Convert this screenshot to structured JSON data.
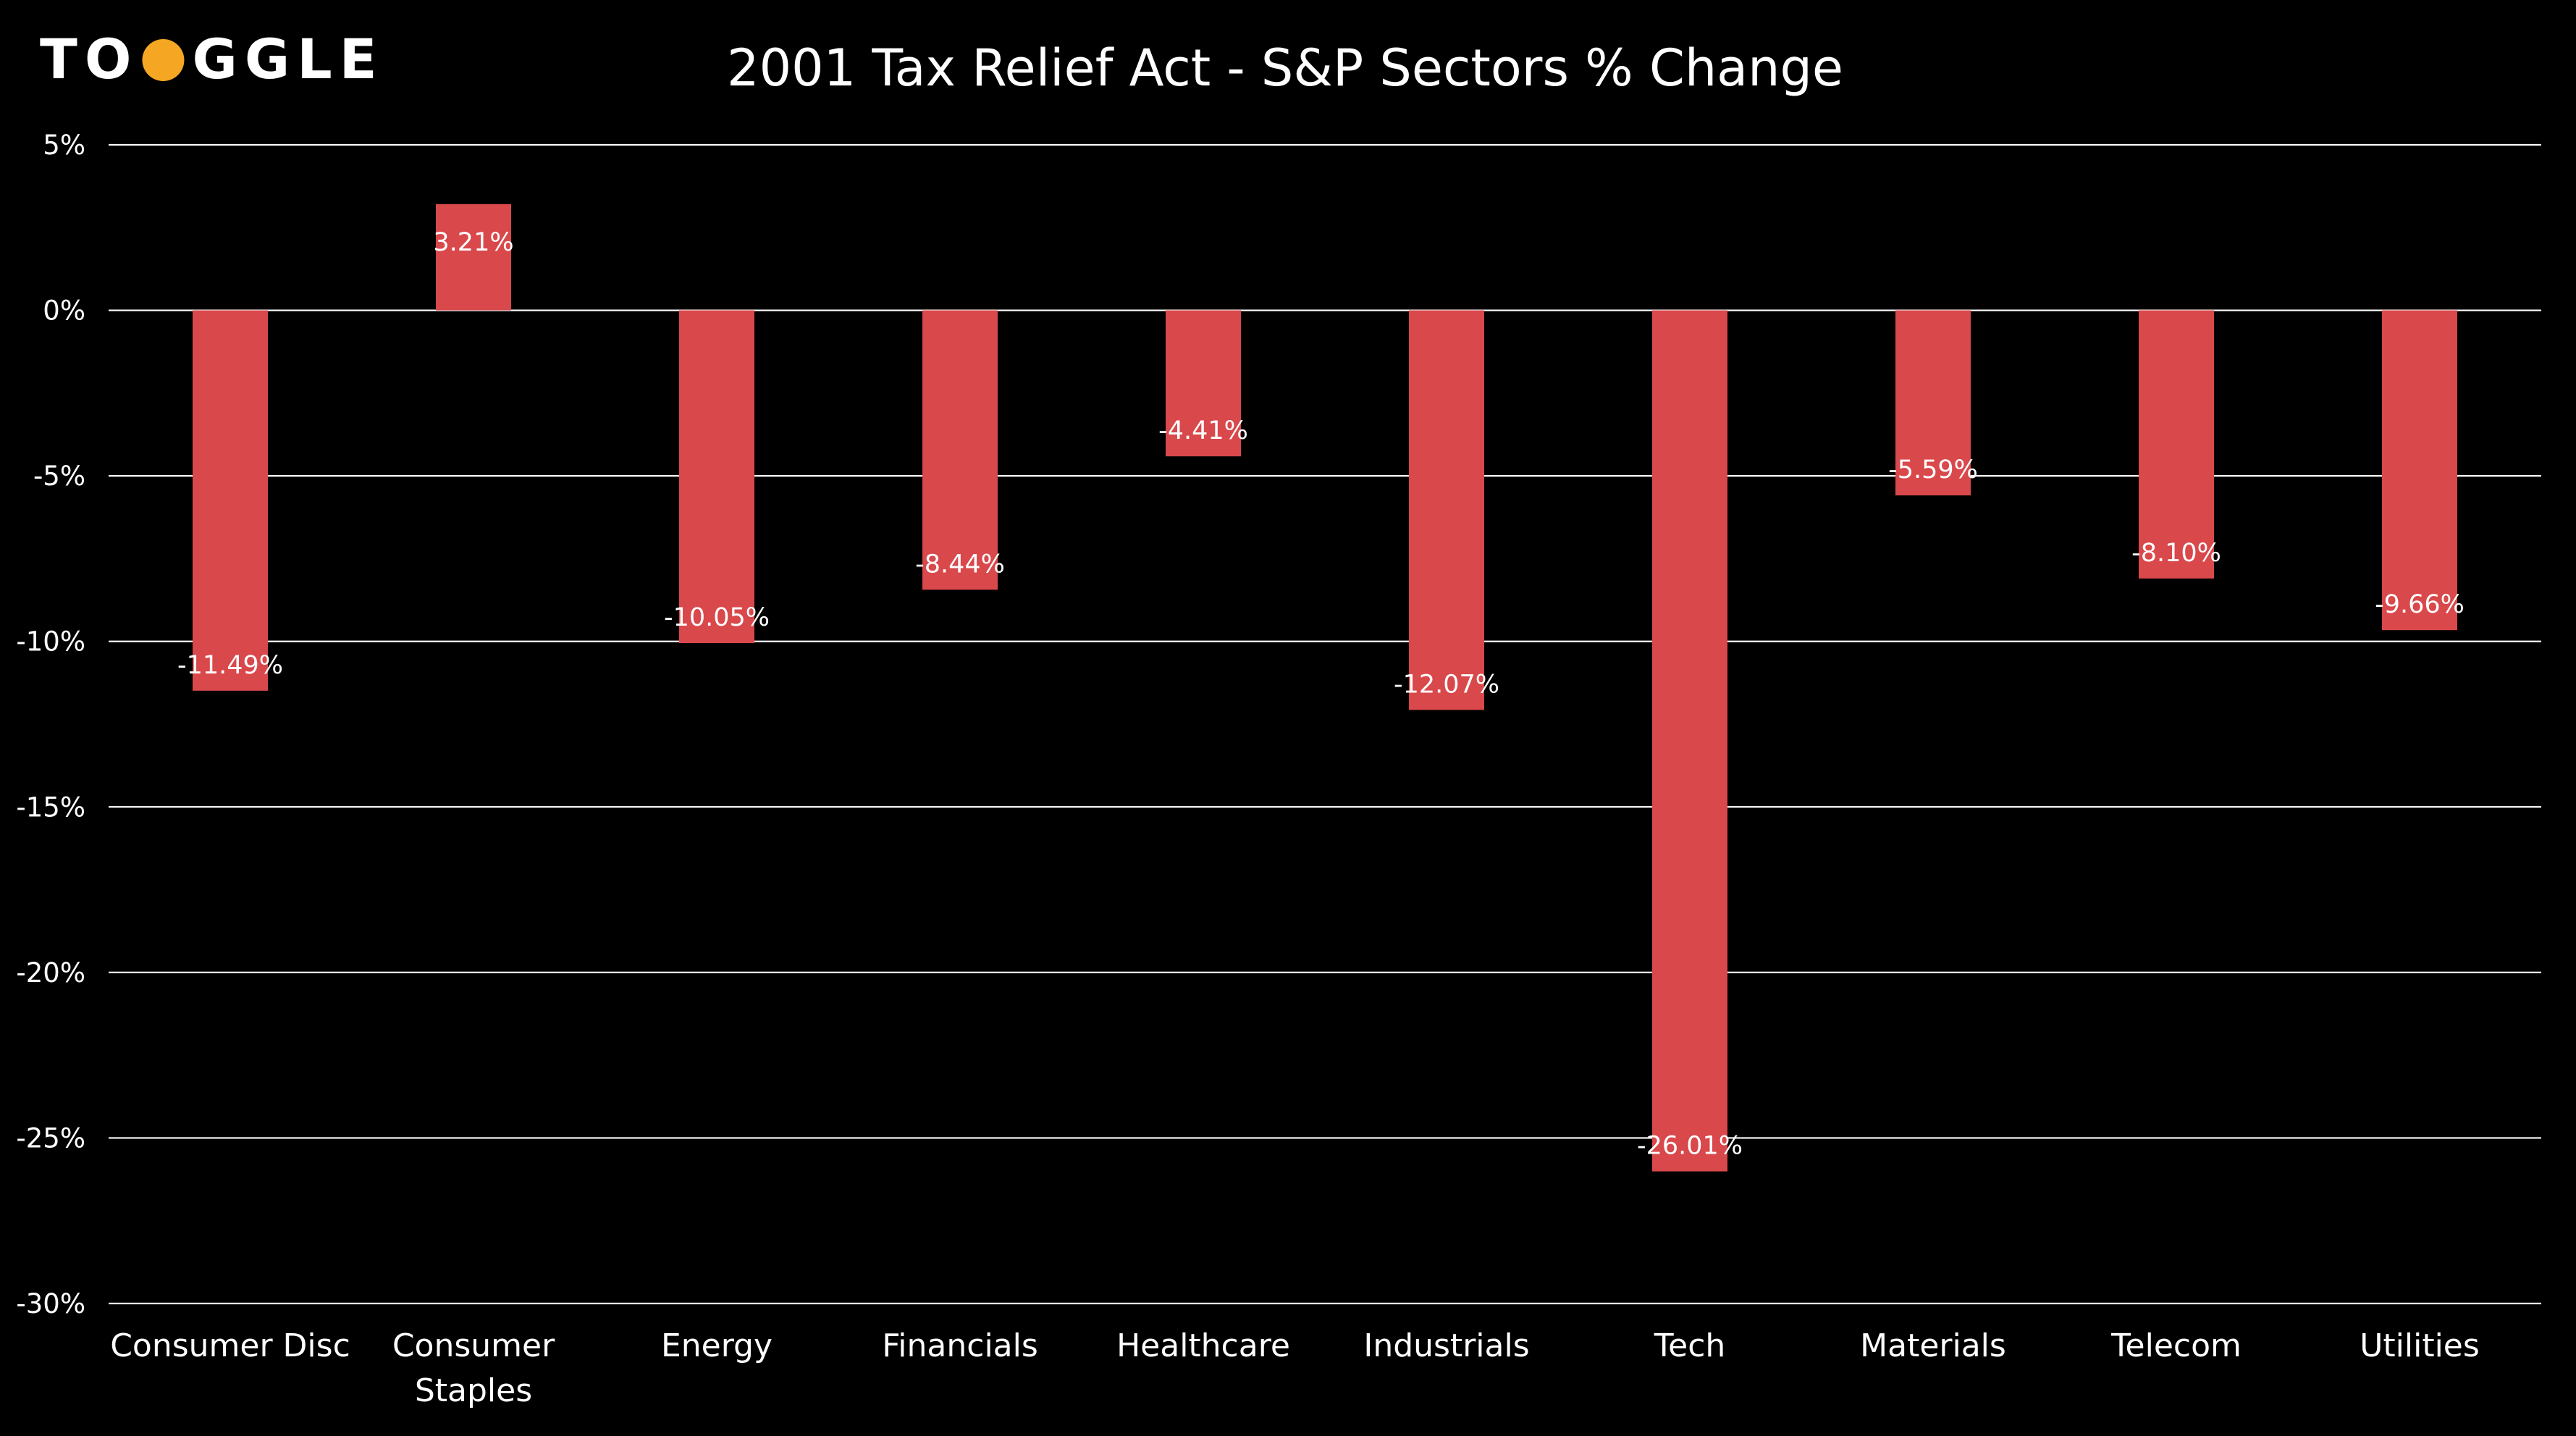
{
  "logo": {
    "text_left": "TO",
    "text_right": "GGLE",
    "accent_color": "#f5a623"
  },
  "chart_data": {
    "type": "bar",
    "title": "2001 Tax Relief Act - S&P Sectors % Change",
    "xlabel": "",
    "ylabel": "",
    "categories": [
      [
        "Consumer Disc"
      ],
      [
        "Consumer",
        "Staples"
      ],
      [
        "Energy"
      ],
      [
        "Financials"
      ],
      [
        "Healthcare"
      ],
      [
        "Industrials"
      ],
      [
        "Tech"
      ],
      [
        "Materials"
      ],
      [
        "Telecom"
      ],
      [
        "Utilities"
      ]
    ],
    "values": [
      -11.49,
      3.21,
      -10.05,
      -8.44,
      -4.41,
      -12.07,
      -26.01,
      -5.59,
      -8.1,
      -9.66
    ],
    "data_labels": [
      "-11.49%",
      "3.21%",
      "-10.05%",
      "-8.44%",
      "-4.41%",
      "-12.07%",
      "-26.01%",
      "-5.59%",
      "-8.10%",
      "-9.66%"
    ],
    "ylim": [
      -30,
      5
    ],
    "yticks": [
      5,
      0,
      -5,
      -10,
      -15,
      -20,
      -25,
      -30
    ],
    "ytick_labels": [
      "5%",
      "0%",
      "-5%",
      "-10%",
      "-15%",
      "-20%",
      "-25%",
      "-30%"
    ],
    "grid": true,
    "bar_color": "#d9484b",
    "gridline_color": "#ffffff",
    "background": "#000000"
  }
}
